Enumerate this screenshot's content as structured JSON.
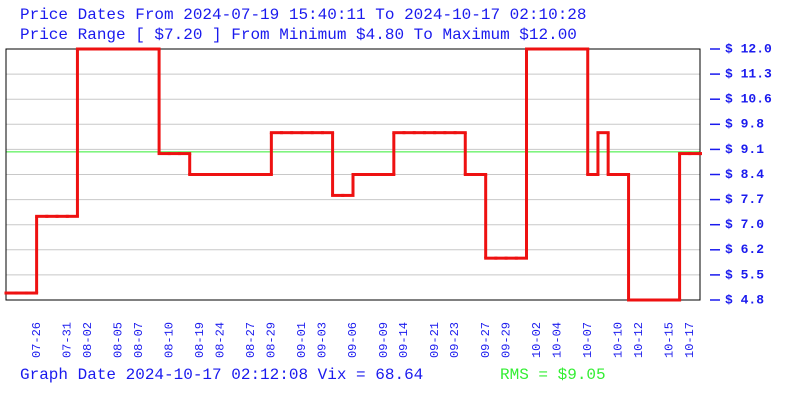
{
  "chart_data": {
    "type": "step",
    "title": "Price Dates From 2024-07-19 15:40:11 To 2024-10-17 02:10:28",
    "subtitle": "Price Range [ $7.20 ] From Minimum $4.80 To Maximum $12.00",
    "footer": "Graph Date 2024-10-17 02:12:08 Vix = 68.64",
    "reference_line": {
      "value": 9.05,
      "label": "RMS = $9.05",
      "color": "#33ee33"
    },
    "categories": [
      null,
      null,
      null,
      "07-26",
      null,
      null,
      "07-31",
      null,
      "08-02",
      null,
      null,
      "08-05",
      null,
      "08-07",
      null,
      null,
      "08-10",
      null,
      null,
      "08-19",
      null,
      "08-24",
      null,
      null,
      "08-27",
      null,
      "08-29",
      null,
      null,
      "09-01",
      null,
      "09-03",
      null,
      null,
      "09-06",
      null,
      null,
      "09-09",
      null,
      "09-14",
      null,
      null,
      "09-21",
      null,
      "09-23",
      null,
      null,
      "09-27",
      null,
      "09-29",
      null,
      null,
      "10-02",
      null,
      "10-04",
      null,
      null,
      "10-07",
      null,
      null,
      "10-10",
      null,
      "10-12",
      null,
      null,
      "10-15",
      null,
      "10-17",
      null
    ],
    "series": [
      {
        "name": "Price",
        "color": "#ee1111",
        "values": [
          5.0,
          5.0,
          5.0,
          7.2,
          7.2,
          7.2,
          7.2,
          12.0,
          12.0,
          12.0,
          12.0,
          12.0,
          12.0,
          12.0,
          12.0,
          9.0,
          9.0,
          9.0,
          8.4,
          8.4,
          8.4,
          8.4,
          8.4,
          8.4,
          8.4,
          8.4,
          9.6,
          9.6,
          9.6,
          9.6,
          9.6,
          9.6,
          7.8,
          7.8,
          8.4,
          8.4,
          8.4,
          8.4,
          9.6,
          9.6,
          9.6,
          9.6,
          9.6,
          9.6,
          9.6,
          8.4,
          8.4,
          6.0,
          6.0,
          6.0,
          6.0,
          12.0,
          12.0,
          12.0,
          12.0,
          12.0,
          12.0,
          8.4,
          9.6,
          8.4,
          8.4,
          4.8,
          4.8,
          4.8,
          4.8,
          4.8,
          9.0,
          9.0,
          9.0
        ]
      }
    ],
    "ylim": [
      4.8,
      12.0
    ],
    "yticks": [
      {
        "value": 12.0,
        "label": "$ 12.0"
      },
      {
        "value": 11.28,
        "label": "$ 11.3"
      },
      {
        "value": 10.56,
        "label": "$ 10.6"
      },
      {
        "value": 9.84,
        "label": "$ 9.8"
      },
      {
        "value": 9.12,
        "label": "$ 9.1"
      },
      {
        "value": 8.4,
        "label": "$ 8.4"
      },
      {
        "value": 7.68,
        "label": "$ 7.7"
      },
      {
        "value": 6.96,
        "label": "$ 7.0"
      },
      {
        "value": 6.24,
        "label": "$ 6.2"
      },
      {
        "value": 5.52,
        "label": "$ 5.5"
      },
      {
        "value": 4.8,
        "label": "$ 4.8"
      }
    ],
    "grid": true,
    "text_color": "#1a1aee"
  }
}
